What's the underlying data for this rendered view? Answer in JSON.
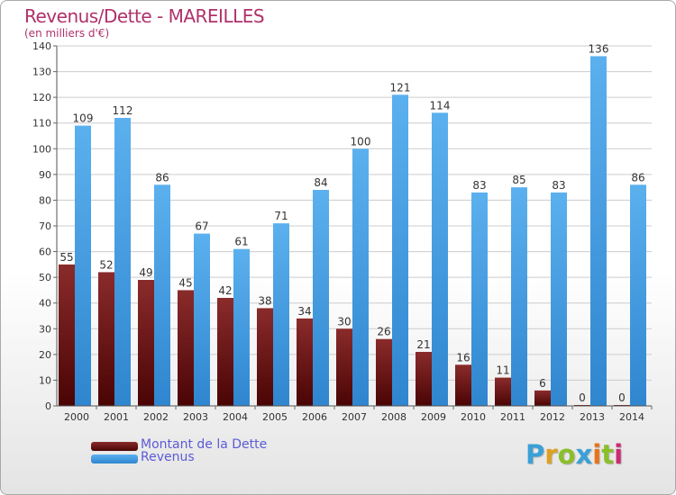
{
  "title": "Revenus/Dette - MAREILLES",
  "subtitle": "(en milliers d'€)",
  "colors": {
    "title": "#b0316b",
    "dette_top": "#8a2b2b",
    "dette_bottom": "#4a0404",
    "revenus_top": "#5bb0ee",
    "revenus_bottom": "#2f86cf",
    "grid": "#cccccc",
    "legend_text": "#5b5bd6"
  },
  "logo": {
    "letters": [
      "P",
      "r",
      "o",
      "x",
      "i",
      "t",
      "i"
    ],
    "letter_colors": [
      "#3aa0d8",
      "#e0a020",
      "#8bbf2a",
      "#3aa0d8",
      "#e8731a",
      "#8bbf2a",
      "#cc2a72"
    ]
  },
  "chart_data": {
    "type": "bar",
    "categories": [
      "2000",
      "2001",
      "2002",
      "2003",
      "2004",
      "2005",
      "2006",
      "2007",
      "2008",
      "2009",
      "2010",
      "2011",
      "2012",
      "2013",
      "2014"
    ],
    "series": [
      {
        "name": "Montant de la Dette",
        "values": [
          55,
          52,
          49,
          45,
          42,
          38,
          34,
          30,
          26,
          21,
          16,
          11,
          6,
          0,
          0
        ]
      },
      {
        "name": "Revenus",
        "values": [
          109,
          112,
          86,
          67,
          61,
          71,
          84,
          100,
          121,
          114,
          83,
          85,
          83,
          136,
          86
        ]
      }
    ],
    "ylim": [
      0,
      140
    ],
    "yticks": [
      0,
      10,
      20,
      30,
      40,
      50,
      60,
      70,
      80,
      90,
      100,
      110,
      120,
      130,
      140
    ],
    "grid": true,
    "legend_position": "bottom-left"
  }
}
